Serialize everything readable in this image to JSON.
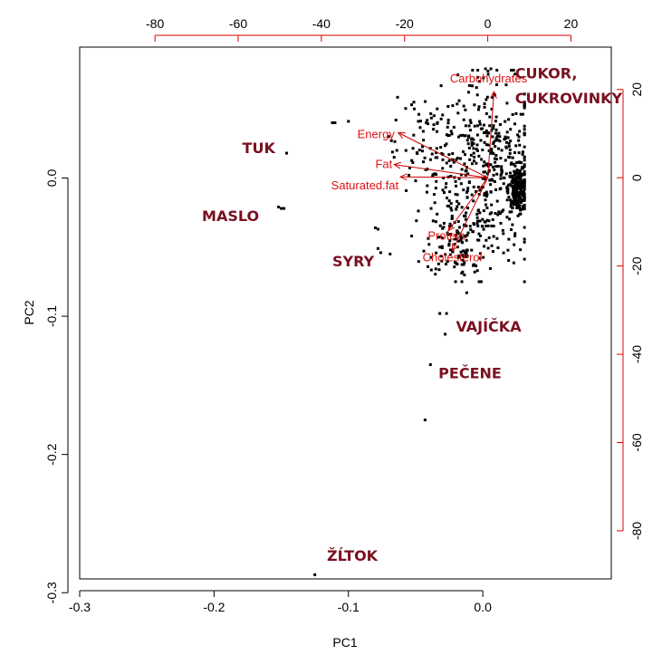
{
  "chart_data": {
    "type": "scatter",
    "title": "",
    "xlabel": "PC1",
    "ylabel": "PC2",
    "xlim": [
      -0.3,
      0.0956
    ],
    "ylim": [
      -0.29,
      0.0947
    ],
    "x_ticks": [
      -0.3,
      -0.2,
      -0.1,
      0.0
    ],
    "y_ticks": [
      0.0,
      -0.1,
      -0.2,
      -0.3
    ],
    "x_tick_labels": [
      "-0.3",
      "-0.2",
      "-0.1",
      "0.0"
    ],
    "y_tick_labels": [
      "0.0",
      "-0.1",
      "-0.2",
      "-0.3"
    ],
    "secondary_axes": {
      "color": "#dd0000",
      "top_ticks": [
        -80,
        -60,
        -40,
        -20,
        0,
        20
      ],
      "top_tick_labels": [
        "-80",
        "-60",
        "-40",
        "-20",
        "0",
        "20"
      ],
      "right_ticks": [
        20,
        0,
        -20,
        -40,
        -60,
        -80
      ],
      "right_tick_labels": [
        "20",
        "0",
        "-20",
        "-40",
        "-60",
        "-80"
      ],
      "xlim": [
        -98.1,
        29.7
      ],
      "ylim": [
        -90.9,
        29.6
      ]
    },
    "variables": [
      {
        "label": "Carbohydrates",
        "x": 1.5,
        "y": 19.5
      },
      {
        "label": "Energy",
        "x": -21.5,
        "y": 10.2
      },
      {
        "label": "Fat",
        "x": -22.5,
        "y": 3.0
      },
      {
        "label": "Saturated.fat",
        "x": -21.0,
        "y": 0.2
      },
      {
        "label": "Protein",
        "x": -9.5,
        "y": -12.0
      },
      {
        "label": "Cholesterol",
        "x": -8.5,
        "y": -16.5
      }
    ],
    "variable_origin": [
      0,
      0
    ],
    "group_labels": [
      {
        "label": "CUKOR,",
        "x": 0.024,
        "y": 0.072
      },
      {
        "label": "CUKROVINKY",
        "x": 0.024,
        "y": 0.054
      },
      {
        "label": "TUK",
        "x": -0.179,
        "y": 0.018
      },
      {
        "label": "MASLO",
        "x": -0.209,
        "y": -0.031
      },
      {
        "label": "SYRY",
        "x": -0.112,
        "y": -0.064
      },
      {
        "label": "VAJÍČKA",
        "x": -0.02,
        "y": -0.111
      },
      {
        "label": "PEČENE",
        "x": -0.033,
        "y": -0.145
      },
      {
        "label": "ŽĹTOK",
        "x": -0.116,
        "y": -0.277
      }
    ],
    "points": [
      [
        -0.146,
        0.018
      ],
      [
        -0.152,
        -0.021
      ],
      [
        -0.15,
        -0.022
      ],
      [
        -0.148,
        -0.022
      ],
      [
        -0.125,
        -0.287
      ],
      [
        -0.043,
        -0.175
      ],
      [
        -0.039,
        -0.135
      ],
      [
        -0.028,
        -0.113
      ],
      [
        -0.027,
        -0.098
      ],
      [
        -0.032,
        -0.098
      ],
      [
        -0.012,
        -0.083
      ],
      [
        -0.004,
        -0.067
      ],
      [
        -0.069,
        -0.055
      ],
      [
        -0.076,
        -0.054
      ],
      [
        -0.078,
        -0.051
      ],
      [
        -0.08,
        -0.036
      ],
      [
        -0.078,
        -0.037
      ],
      [
        -0.11,
        0.04
      ],
      [
        -0.112,
        0.04
      ],
      [
        -0.1,
        0.041
      ],
      [
        -0.064,
        0.02
      ],
      [
        -0.066,
        0.015
      ],
      [
        -0.07,
        0.03
      ],
      [
        -0.068,
        0.027
      ],
      [
        -0.053,
        0.053
      ],
      [
        -0.051,
        0.05
      ],
      [
        -0.048,
        0.041
      ],
      [
        -0.05,
        -0.002
      ],
      [
        -0.055,
        0.002
      ],
      [
        0.002,
        0.079
      ],
      [
        0.004,
        0.075
      ],
      [
        0.006,
        0.079
      ],
      [
        0.009,
        0.06
      ],
      [
        0.016,
        0.028
      ],
      [
        0.02,
        0.015
      ],
      [
        0.021,
        0.01
      ],
      [
        0.024,
        -0.005
      ],
      [
        0.027,
        -0.015
      ],
      [
        -0.002,
        -0.058
      ],
      [
        -0.006,
        -0.068
      ],
      [
        -0.015,
        -0.068
      ],
      [
        -0.024,
        -0.052
      ],
      [
        -0.032,
        -0.05
      ],
      [
        -0.04,
        -0.048
      ]
    ],
    "cloud_points": [
      {
        "cx": 0.005,
        "cy": 0.005,
        "sx": 0.02,
        "sy": 0.032,
        "n": 420
      },
      {
        "cx": 0.026,
        "cy": -0.008,
        "sx": 0.0035,
        "sy": 0.008,
        "n": 200
      },
      {
        "cx": -0.018,
        "cy": -0.045,
        "sx": 0.012,
        "sy": 0.013,
        "n": 110
      },
      {
        "cx": -0.04,
        "cy": 0.02,
        "sx": 0.014,
        "sy": 0.02,
        "n": 80
      }
    ]
  }
}
